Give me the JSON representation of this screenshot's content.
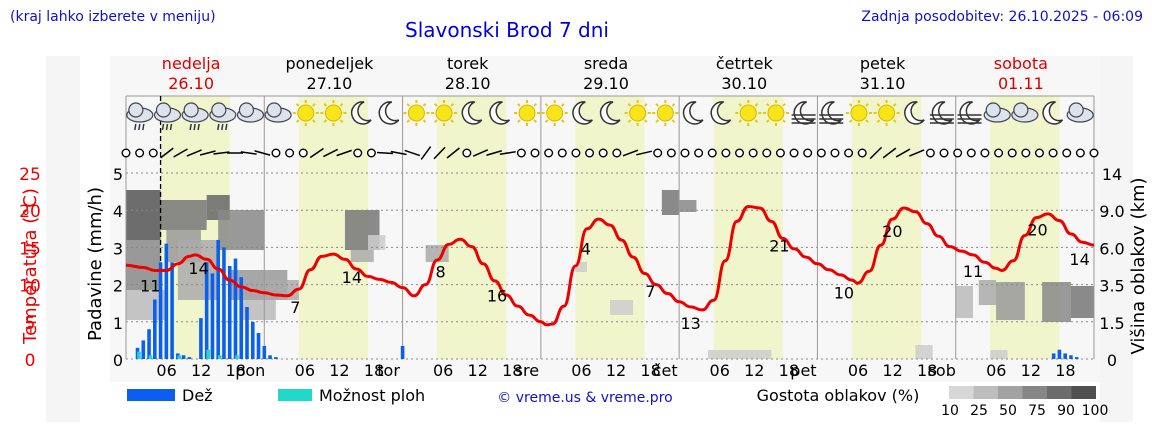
{
  "header": {
    "menu_hint": "(kraj lahko izberete v meniju)",
    "title": "Slavonski Brod 7 dni",
    "updated": "Zadnja posodobitev: 26.10.2025 - 06:09"
  },
  "days": [
    {
      "name": "nedelja",
      "date": "26.10",
      "weekend": true
    },
    {
      "name": "ponedeljek",
      "date": "27.10",
      "weekend": false
    },
    {
      "name": "torek",
      "date": "28.10",
      "weekend": false
    },
    {
      "name": "sreda",
      "date": "29.10",
      "weekend": false
    },
    {
      "name": "četrtek",
      "date": "30.10",
      "weekend": false
    },
    {
      "name": "petek",
      "date": "31.10",
      "weekend": false
    },
    {
      "name": "sobota",
      "date": "01.11",
      "weekend": true
    }
  ],
  "weather_icons": [
    "rain-cloud",
    "rain-cloud",
    "rain-cloud",
    "rain-cloud",
    "cloud",
    "cloud",
    "sun",
    "sun",
    "moon",
    "moon",
    "sun",
    "sun",
    "moon",
    "moon",
    "sun",
    "sun",
    "moon",
    "moon",
    "sun",
    "sun",
    "moon",
    "moon",
    "sun",
    "sun",
    "moon-fog",
    "moon-fog",
    "sun",
    "sun",
    "moon",
    "moon-fog",
    "moon-fog",
    "cloud",
    "cloud",
    "moon",
    "cloud"
  ],
  "legend": {
    "rain": "Dež",
    "showers": "Možnost ploh",
    "copyright": "© vreme.us & vreme.pro",
    "cloud_density": "Gostota oblakov (%)",
    "cloud_levels": [
      "10",
      "25",
      "50",
      "75",
      "90",
      "100"
    ]
  },
  "colors": {
    "temperature": "#ee0000",
    "rain": "#0a5ff0",
    "showers": "#20d8c8",
    "title": "#0000dd",
    "weekend": "#dd0000",
    "daylight": "#f0f5cc"
  },
  "chart_data": {
    "type": "line",
    "title": "Slavonski Brod 7 dni",
    "x_start": "2025-10-26 00:00",
    "x_step_hours": 1,
    "hours_total": 168,
    "x_tick_labels": [
      "06",
      "12",
      "18",
      "pon",
      "06",
      "12",
      "18",
      "tor",
      "06",
      "12",
      "18",
      "sre",
      "06",
      "12",
      "18",
      "čet",
      "06",
      "12",
      "18",
      "pet",
      "06",
      "12",
      "18",
      "sob",
      "06",
      "12",
      "18"
    ],
    "ylabel_left_temp": "Temperatura (°C)",
    "ylabel_left_precip": "Padavine (mm/h)",
    "ylabel_right": "Višina oblakov (km)",
    "temp_ticks": [
      "0",
      "5",
      "10",
      "15",
      "20",
      "25"
    ],
    "precip_ticks": [
      "0",
      "1",
      "2",
      "3",
      "4",
      "5"
    ],
    "cloud_height_ticks": [
      "0",
      "1.5",
      "3.5",
      "6.0",
      "9.0",
      "14"
    ],
    "temp_ylim": [
      0,
      25
    ],
    "precip_ylim": [
      0,
      5
    ],
    "temperature": {
      "points": [
        [
          0,
          12.6
        ],
        [
          3,
          12.3
        ],
        [
          5,
          11.9
        ],
        [
          7,
          11.9
        ],
        [
          9,
          12.8
        ],
        [
          11,
          13.8
        ],
        [
          12,
          14.0
        ],
        [
          14,
          13.4
        ],
        [
          16,
          12.1
        ],
        [
          18,
          10.6
        ],
        [
          20,
          9.7
        ],
        [
          22,
          9.2
        ],
        [
          24,
          8.9
        ],
        [
          26,
          8.6
        ],
        [
          28,
          8.5
        ],
        [
          30,
          9.4
        ],
        [
          32,
          12.0
        ],
        [
          34,
          13.8
        ],
        [
          36,
          14.1
        ],
        [
          38,
          13.4
        ],
        [
          40,
          12.1
        ],
        [
          42,
          11.1
        ],
        [
          44,
          10.7
        ],
        [
          46,
          10.3
        ],
        [
          48,
          9.6
        ],
        [
          50,
          8.5
        ],
        [
          52,
          10.0
        ],
        [
          54,
          13.3
        ],
        [
          56,
          15.4
        ],
        [
          58,
          16.1
        ],
        [
          60,
          15.1
        ],
        [
          62,
          12.8
        ],
        [
          64,
          10.5
        ],
        [
          66,
          8.6
        ],
        [
          68,
          7.1
        ],
        [
          70,
          5.9
        ],
        [
          72,
          5.0
        ],
        [
          73,
          4.6
        ],
        [
          74,
          4.7
        ],
        [
          76,
          7.1
        ],
        [
          78,
          12.5
        ],
        [
          80,
          17.5
        ],
        [
          82,
          18.8
        ],
        [
          84,
          18.0
        ],
        [
          86,
          16.0
        ],
        [
          88,
          13.7
        ],
        [
          90,
          11.5
        ],
        [
          92,
          10.0
        ],
        [
          94,
          8.8
        ],
        [
          96,
          7.7
        ],
        [
          98,
          7.0
        ],
        [
          100,
          6.6
        ],
        [
          102,
          7.9
        ],
        [
          104,
          13.2
        ],
        [
          106,
          18.5
        ],
        [
          108,
          20.5
        ],
        [
          110,
          20.3
        ],
        [
          112,
          18.5
        ],
        [
          114,
          16.2
        ],
        [
          116,
          14.8
        ],
        [
          118,
          13.7
        ],
        [
          120,
          12.8
        ],
        [
          122,
          12.0
        ],
        [
          124,
          11.3
        ],
        [
          126,
          10.6
        ],
        [
          127,
          10.2
        ],
        [
          129,
          11.8
        ],
        [
          131,
          15.3
        ],
        [
          133,
          18.8
        ],
        [
          135,
          20.3
        ],
        [
          137,
          19.8
        ],
        [
          139,
          18.2
        ],
        [
          141,
          16.5
        ],
        [
          143,
          15.1
        ],
        [
          145,
          14.5
        ],
        [
          147,
          14.0
        ],
        [
          149,
          13.0
        ],
        [
          151,
          12.2
        ],
        [
          152,
          11.9
        ],
        [
          154,
          13.2
        ],
        [
          156,
          16.6
        ],
        [
          158,
          19.0
        ],
        [
          160,
          19.5
        ],
        [
          162,
          18.6
        ],
        [
          164,
          16.8
        ],
        [
          166,
          15.7
        ],
        [
          168,
          15.3
        ]
      ],
      "labels": [
        {
          "h": 3,
          "v": "11"
        },
        {
          "h": 9,
          "v": "14"
        },
        {
          "h": 21,
          "v": "7"
        },
        {
          "h": 28,
          "v": "14"
        },
        {
          "h": 39,
          "v": "8"
        },
        {
          "h": 46,
          "v": "16"
        },
        {
          "h": 57,
          "v": "4"
        },
        {
          "h": 65,
          "v": "7"
        },
        {
          "h": 70,
          "v": "13"
        },
        {
          "h": 81,
          "v": "21"
        },
        {
          "h": 89,
          "v": "10"
        },
        {
          "h": 95,
          "v": "20"
        },
        {
          "h": 105,
          "v": "11"
        },
        {
          "h": 113,
          "v": "20"
        },
        {
          "h": 119,
          "v": "14"
        }
      ]
    },
    "precipitation_mm_h": [
      [
        2,
        0.3
      ],
      [
        3,
        0.5
      ],
      [
        4,
        0.8
      ],
      [
        5,
        1.6
      ],
      [
        6,
        2.6
      ],
      [
        7,
        3.1
      ],
      [
        8,
        2.6
      ],
      [
        9,
        0.15
      ],
      [
        10,
        0.1
      ],
      [
        11,
        0.05
      ],
      [
        13,
        1.1
      ],
      [
        14,
        2.6
      ],
      [
        15,
        2.3
      ],
      [
        16,
        3.2
      ],
      [
        17,
        3.0
      ],
      [
        18,
        2.5
      ],
      [
        19,
        2.7
      ],
      [
        20,
        2.2
      ],
      [
        21,
        1.4
      ],
      [
        22,
        1.0
      ],
      [
        23,
        0.7
      ],
      [
        24,
        0.35
      ],
      [
        25,
        0.1
      ],
      [
        26,
        0.05
      ],
      [
        48,
        0.35
      ],
      [
        161,
        0.15
      ],
      [
        162,
        0.25
      ],
      [
        163,
        0.15
      ],
      [
        164,
        0.1
      ],
      [
        165,
        0.05
      ]
    ],
    "showers_mm_h": [
      [
        2,
        0.2
      ],
      [
        4,
        0.1
      ],
      [
        9,
        0.1
      ],
      [
        14,
        0.25
      ],
      [
        16,
        0.1
      ],
      [
        19,
        0.1
      ]
    ],
    "now_hour": 6
  }
}
